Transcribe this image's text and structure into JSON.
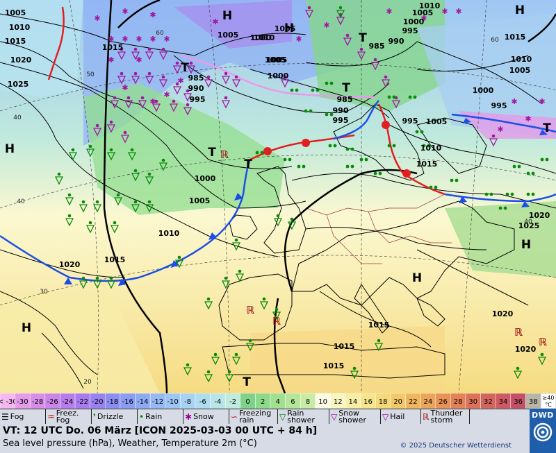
{
  "map": {
    "highs": [
      "H",
      "H",
      "H",
      "H",
      "H",
      "H",
      "H"
    ],
    "lows": [
      "T",
      "T",
      "T",
      "T",
      "T",
      "T",
      "T"
    ],
    "isobar_labels": [
      "1005",
      "1010",
      "1015",
      "1020",
      "1025",
      "1005",
      "1015",
      "1005",
      "1010",
      "985",
      "990",
      "995",
      "1000",
      "1005",
      "1000",
      "1005",
      "985",
      "990",
      "995",
      "985",
      "990",
      "995",
      "1000",
      "1005",
      "1010",
      "995",
      "1015",
      "1010",
      "1005",
      "1000",
      "995",
      "1005",
      "1010",
      "1015",
      "1000",
      "1005",
      "1010",
      "1020",
      "1015",
      "1020",
      "1025",
      "1020",
      "1015",
      "1015",
      "1020",
      "1015"
    ],
    "temp_labels": [
      "60",
      "50",
      "40",
      "40",
      "30",
      "20",
      "60",
      "40"
    ]
  },
  "scale": {
    "unit": "°C",
    "top_label": "≥40",
    "bins": [
      {
        "label": "< -30",
        "color": "#f5b8f0"
      },
      {
        "label": "-30",
        "color": "#e49be8"
      },
      {
        "label": "-28",
        "color": "#d68ee8"
      },
      {
        "label": "-26",
        "color": "#c985ea"
      },
      {
        "label": "-24",
        "color": "#b87ced"
      },
      {
        "label": "-22",
        "color": "#a87cee"
      },
      {
        "label": "-20",
        "color": "#9982f0"
      },
      {
        "label": "-18",
        "color": "#8b8df2"
      },
      {
        "label": "-16",
        "color": "#8b9cf5"
      },
      {
        "label": "-14",
        "color": "#8faaf5"
      },
      {
        "label": "-12",
        "color": "#96b8f5"
      },
      {
        "label": "-10",
        "color": "#9ec6f5"
      },
      {
        "label": "-8",
        "color": "#a7d2f4"
      },
      {
        "label": "-6",
        "color": "#b0dcf0"
      },
      {
        "label": "-4",
        "color": "#b8e4ea"
      },
      {
        "label": "-2",
        "color": "#bfeade"
      },
      {
        "label": "0",
        "color": "#7ed28a"
      },
      {
        "label": "2",
        "color": "#8cd98a"
      },
      {
        "label": "4",
        "color": "#a0e08e"
      },
      {
        "label": "6",
        "color": "#b4e69a"
      },
      {
        "label": "8",
        "color": "#c8eca6"
      },
      {
        "label": "10",
        "color": "#fbfbe8"
      },
      {
        "label": "12",
        "color": "#f8f5c2"
      },
      {
        "label": "14",
        "color": "#f7efa6"
      },
      {
        "label": "16",
        "color": "#f6e58c"
      },
      {
        "label": "18",
        "color": "#f5d878"
      },
      {
        "label": "20",
        "color": "#f3c868"
      },
      {
        "label": "22",
        "color": "#f0b65e"
      },
      {
        "label": "24",
        "color": "#eca458"
      },
      {
        "label": "26",
        "color": "#e89256"
      },
      {
        "label": "28",
        "color": "#e38157"
      },
      {
        "label": "30",
        "color": "#dc7259"
      },
      {
        "label": "32",
        "color": "#d4655d"
      },
      {
        "label": "34",
        "color": "#cc5a62"
      },
      {
        "label": "36",
        "color": "#c45068"
      },
      {
        "label": "38",
        "color": "#b9b5a5"
      }
    ]
  },
  "legend": [
    {
      "icon": "☰",
      "lines": [
        "Fog"
      ],
      "color": "#000"
    },
    {
      "icon": "♒",
      "lines": [
        "Freez.",
        "Fog"
      ],
      "color": "#c00"
    },
    {
      "icon": "❜",
      "lines": [
        "Drizzle"
      ],
      "color": "#080"
    },
    {
      "icon": "•",
      "lines": [
        "Rain"
      ],
      "color": "#080"
    },
    {
      "icon": "✱",
      "lines": [
        "Snow"
      ],
      "color": "#909"
    },
    {
      "icon": "∽",
      "lines": [
        "Freezing",
        "rain"
      ],
      "color": "#c00"
    },
    {
      "icon": "▽",
      "lines": [
        "Rain",
        "shower"
      ],
      "color": "#080"
    },
    {
      "icon": "▽",
      "lines": [
        "Snow",
        "shower"
      ],
      "color": "#909"
    },
    {
      "icon": "▽",
      "lines": [
        "Hail"
      ],
      "color": "#909"
    },
    {
      "icon": "ℝ",
      "lines": [
        "Thunder",
        "storm"
      ],
      "color": "#a00"
    }
  ],
  "info": {
    "valid_time": "VT: 12 UTC Do.  06 März [ICON 2025-03-03  00 UTC + 84 h]",
    "subtitle": "Sea level pressure (hPa), Weather, Temperature 2m (°C)",
    "copyright": "© 2025 Deutscher Wetterdienst"
  },
  "logo": {
    "text": "DWD"
  }
}
